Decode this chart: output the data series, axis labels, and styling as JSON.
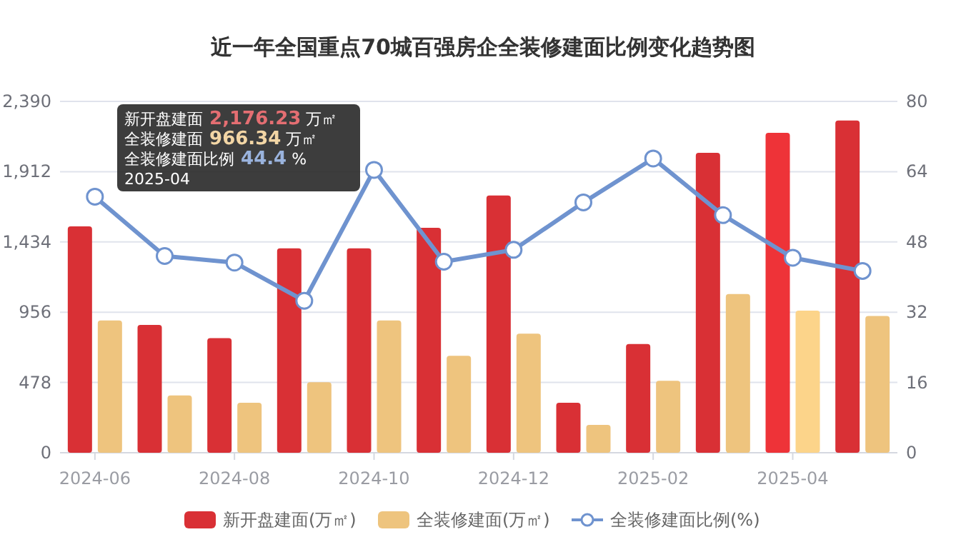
{
  "chart_data": {
    "type": "bar",
    "title": "近一年全国重点70城百强房企全装修建面比例变化趋势图",
    "categories": [
      "2024-06",
      null,
      "2024-08",
      null,
      "2024-10",
      null,
      "2024-12",
      null,
      "2025-02",
      null,
      "2025-04",
      null
    ],
    "series": [
      {
        "name": "新开盘建面(万㎡)",
        "color": "#d93035",
        "colors": [
          "#d93035",
          "#d93035",
          "#d93035",
          "#d93035",
          "#d93035",
          "#d93035",
          "#d93035",
          "#d93035",
          "#d93035",
          "#d93035",
          "#ee3338",
          "#d93035"
        ],
        "values": [
          1540,
          870,
          780,
          1390,
          1390,
          1530,
          1750,
          340,
          740,
          2040,
          2176.23,
          2260
        ]
      },
      {
        "name": "全装修建面(万㎡)",
        "color": "#eec47e",
        "colors": [
          "#eec47e",
          "#eec47e",
          "#eec47e",
          "#eec47e",
          "#eec47e",
          "#eec47e",
          "#eec47e",
          "#eec47e",
          "#eec47e",
          "#eec47e",
          "#fcd48a",
          "#eec47e"
        ],
        "values": [
          900,
          390,
          340,
          480,
          900,
          660,
          810,
          190,
          490,
          1080,
          966.34,
          930
        ]
      },
      {
        "name": "全装修建面比例(%)",
        "type": "line",
        "axis": "y2",
        "color": "#6f93cf",
        "marker": "circle",
        "values": [
          58.3,
          44.8,
          43.3,
          34.6,
          64.4,
          43.5,
          46.2,
          57.0,
          67.0,
          54.1,
          44.4,
          41.4
        ]
      }
    ],
    "ylim": [
      0,
      2390
    ],
    "yticks": [
      0,
      {
        "value": 478,
        "label": "478"
      },
      {
        "value": 956,
        "label": "956"
      },
      {
        "value": 1434,
        "label": "1,434"
      },
      {
        "value": 1912,
        "label": "1,912"
      },
      {
        "value": 2390,
        "label": "2,390"
      }
    ],
    "y2lim": [
      0,
      80
    ],
    "y2ticks": [
      0,
      16,
      32,
      48,
      64,
      80
    ],
    "grid": "y",
    "legend": "bottom",
    "annotations": [
      "新开盘建面 2,176.23 万㎡",
      "全装修建面 966.34 万㎡",
      "全装修建面比例 44.4 %",
      "2025-04"
    ]
  }
}
